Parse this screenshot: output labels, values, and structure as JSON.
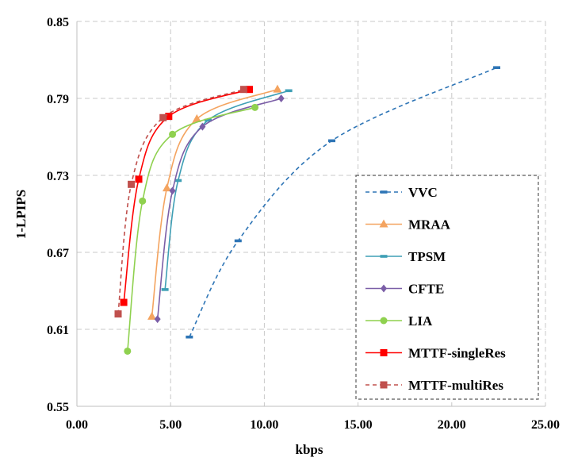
{
  "chart_data": {
    "type": "line",
    "xlabel": "kbps",
    "ylabel": "1-LPIPS",
    "xlim": [
      0,
      25
    ],
    "ylim": [
      0.55,
      0.85
    ],
    "xticks": [
      0,
      5,
      10,
      15,
      20,
      25
    ],
    "yticks": [
      0.55,
      0.61,
      0.67,
      0.73,
      0.79,
      0.85
    ],
    "xtick_labels": [
      "0.00",
      "5.00",
      "10.00",
      "15.00",
      "20.00",
      "25.00"
    ],
    "ytick_labels": [
      "0.55",
      "0.61",
      "0.67",
      "0.73",
      "0.79",
      "0.85"
    ],
    "grid": "dashed",
    "legend_position": "bottom-right",
    "series": [
      {
        "name": "VVC",
        "color": "#2e75b6",
        "dash": true,
        "marker": "dash",
        "x": [
          6.0,
          8.6,
          13.6,
          22.4
        ],
        "y": [
          0.604,
          0.679,
          0.757,
          0.814
        ]
      },
      {
        "name": "MRAA",
        "color": "#f4a460",
        "dash": false,
        "marker": "triangle",
        "x": [
          4.0,
          4.8,
          6.4,
          10.7
        ],
        "y": [
          0.62,
          0.72,
          0.774,
          0.797
        ]
      },
      {
        "name": "TPSM",
        "color": "#3e9fb5",
        "dash": false,
        "marker": "dash",
        "x": [
          4.7,
          5.4,
          7.0,
          11.3
        ],
        "y": [
          0.641,
          0.726,
          0.773,
          0.796
        ]
      },
      {
        "name": "CFTE",
        "color": "#7b5ea7",
        "dash": false,
        "marker": "diamond",
        "x": [
          4.3,
          5.1,
          6.7,
          10.9
        ],
        "y": [
          0.618,
          0.718,
          0.768,
          0.79
        ]
      },
      {
        "name": "LIA",
        "color": "#8fd14f",
        "dash": false,
        "marker": "circle",
        "x": [
          2.7,
          3.5,
          5.1,
          9.5
        ],
        "y": [
          0.593,
          0.71,
          0.762,
          0.783
        ]
      },
      {
        "name": "MTTF-singleRes",
        "color": "#ff0000",
        "dash": false,
        "marker": "square",
        "x": [
          2.5,
          3.3,
          4.9,
          9.2
        ],
        "y": [
          0.631,
          0.727,
          0.776,
          0.797
        ]
      },
      {
        "name": "MTTF-multiRes",
        "color": "#c0504d",
        "dash": true,
        "marker": "square",
        "x": [
          2.2,
          2.9,
          4.6,
          8.9
        ],
        "y": [
          0.622,
          0.723,
          0.775,
          0.797
        ]
      }
    ]
  }
}
